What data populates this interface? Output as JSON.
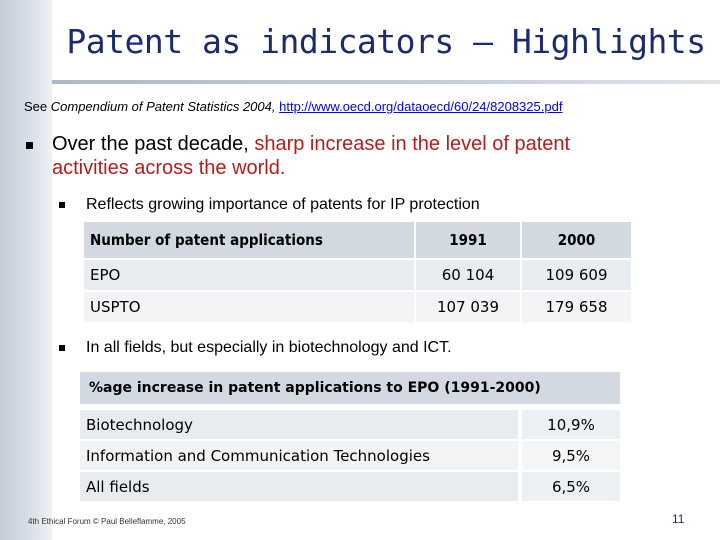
{
  "slide": {
    "title": "Patent as indicators – Highlights",
    "reference": {
      "prefix": "See ",
      "source": "Compendium of Patent Statistics 2004,",
      "link": "http://www.oecd.org/dataoecd/60/24/8208325.pdf"
    },
    "bullet1": {
      "text_before": "Over the past decade, ",
      "highlight": "sharp increase in the level of patent",
      "text_after": "activities across the world."
    },
    "sub_bullet1": "Reflects growing importance of patents for IP protection",
    "table1": {
      "headers": [
        "Number of patent applications",
        "1991",
        "2000"
      ],
      "rows": [
        [
          "EPO",
          "60 104",
          "109 609"
        ],
        [
          "USPTO",
          "107 039",
          "179 658"
        ]
      ]
    },
    "sub_bullet2": "In all fields, but especially in biotechnology and ICT.",
    "table2": {
      "caption": "%age increase in patent applications to EPO (1991-2000)",
      "rows": [
        [
          "Biotechnology",
          "10,9%"
        ],
        [
          "Information and Communication Technologies",
          "9,5%"
        ],
        [
          "All fields",
          "6,5%"
        ]
      ]
    },
    "footer": "4th Ethical Forum © Paul Belleflamme, 2005",
    "page_number": "11"
  },
  "colors": {
    "title": "#1c2a6e",
    "highlight": "#b51c1c",
    "link": "#0000ff"
  }
}
